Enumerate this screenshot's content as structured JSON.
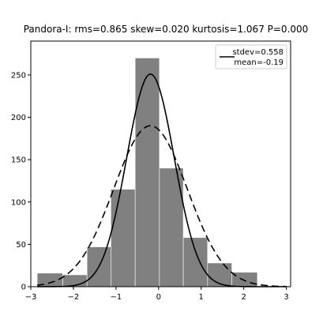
{
  "chart_data": {
    "type": "bar",
    "title": "Pandora-I:   rms=0.865  skew=0.020   kurtosis=1.067   P=0.000",
    "xlim": [
      -3.0,
      3.1
    ],
    "ylim": [
      0,
      290
    ],
    "xticks": [
      -3,
      -2,
      -1,
      0,
      1,
      2,
      3
    ],
    "xtick_labels": [
      "−3",
      "−2",
      "−1",
      "0",
      "1",
      "2",
      "3"
    ],
    "yticks": [
      0,
      50,
      100,
      150,
      200,
      250
    ],
    "ytick_labels": [
      "0",
      "50",
      "100",
      "150",
      "200",
      "250"
    ],
    "bin_edges": [
      -2.85,
      -2.25,
      -1.68,
      -1.12,
      -0.55,
      0.02,
      0.58,
      1.15,
      1.72,
      2.32
    ],
    "counts": [
      16,
      14,
      47,
      115,
      270,
      140,
      58,
      28,
      17
    ],
    "bar_color": "#808080",
    "grid": false,
    "legend": {
      "placement": "top-right",
      "entries": [
        "stdev=0.558",
        "mean=-0.19"
      ]
    },
    "curves": [
      {
        "style": "solid",
        "mean": -0.19,
        "stdev": 0.558,
        "peak": 251
      },
      {
        "style": "dashed",
        "mean": -0.19,
        "stdev": 0.865,
        "peak": 190
      }
    ]
  }
}
